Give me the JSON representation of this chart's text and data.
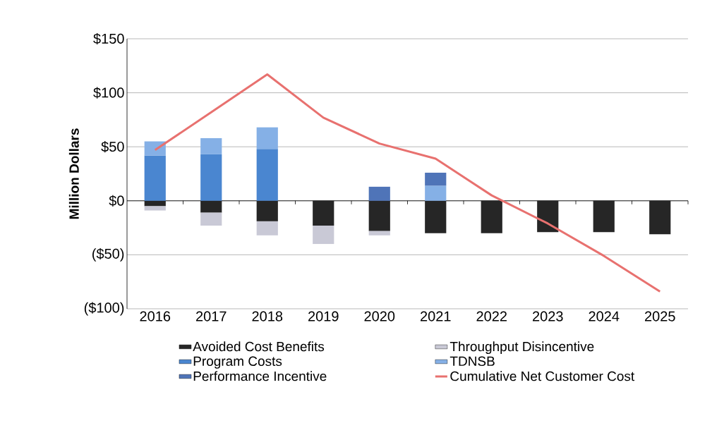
{
  "chart_data": {
    "type": "bar",
    "stacked": true,
    "ylabel": "Million Dollars",
    "categories": [
      "2016",
      "2017",
      "2018",
      "2019",
      "2020",
      "2021",
      "2022",
      "2023",
      "2024",
      "2025"
    ],
    "series": [
      {
        "name": "Avoided Cost Benefits",
        "color": "#262626",
        "values": [
          -5,
          -11,
          -19,
          -23,
          -28,
          -30,
          -30,
          -29,
          -29,
          -31
        ]
      },
      {
        "name": "Throughput Disincentive",
        "color": "#c9c9d6",
        "values": [
          -4,
          -12,
          -13,
          -17,
          -4,
          null,
          null,
          null,
          null,
          null
        ]
      },
      {
        "name": "Program Costs",
        "color": "#4a86d0",
        "values": [
          42,
          43,
          48,
          null,
          null,
          null,
          null,
          null,
          null,
          null
        ]
      },
      {
        "name": "TDNSB",
        "color": "#85b0e6",
        "values": [
          13,
          15,
          20,
          null,
          null,
          14,
          null,
          null,
          null,
          null
        ]
      },
      {
        "name": "Performance Incentive",
        "color": "#4f74b8",
        "values": [
          null,
          null,
          null,
          null,
          13,
          12,
          null,
          null,
          null,
          null
        ]
      },
      {
        "name": "Cumulative Net Customer Cost",
        "type": "line",
        "color": "#e8716f",
        "values": [
          47,
          82,
          117,
          77,
          53,
          39,
          5,
          -21,
          -51,
          -84
        ]
      }
    ],
    "ylim": [
      -100,
      150
    ],
    "yticks": [
      {
        "value": -100,
        "label": "($100)"
      },
      {
        "value": -50,
        "label": "($50)"
      },
      {
        "value": 0,
        "label": "$0"
      },
      {
        "value": 50,
        "label": "$50"
      },
      {
        "value": 100,
        "label": "$100"
      },
      {
        "value": 150,
        "label": "$150"
      }
    ],
    "grid": "y",
    "legend": "bottom"
  }
}
